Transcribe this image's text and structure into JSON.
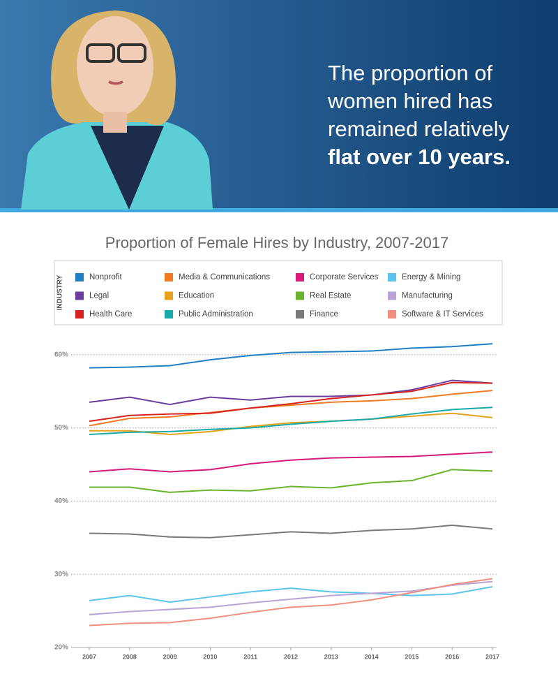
{
  "chart_data": {
    "type": "line",
    "headline": [
      "The proportion of",
      "women hired has",
      "remained relatively"
    ],
    "headline_bold": "flat over 10 years.",
    "title": "Proportion of Female Hires by Industry, 2007-2017",
    "legend_title": "INDUSTRY",
    "x": [
      2007,
      2008,
      2009,
      2010,
      2011,
      2012,
      2013,
      2014,
      2015,
      2016,
      2017
    ],
    "xlim": [
      2007,
      2017
    ],
    "xticks": [
      2007,
      2008,
      2009,
      2010,
      2011,
      2012,
      2013,
      2014,
      2015,
      2016,
      2017
    ],
    "ylim": [
      20,
      62
    ],
    "yticks": [
      {
        "value": 20,
        "label": "20%"
      },
      {
        "value": 30,
        "label": "30%"
      },
      {
        "value": 40,
        "label": "40%"
      },
      {
        "value": 50,
        "label": "50%"
      },
      {
        "value": 60,
        "label": "60%"
      }
    ],
    "grid": true,
    "series": [
      {
        "name": "Nonprofit",
        "color": "#1f7fc6",
        "values": [
          58.2,
          58.3,
          58.5,
          59.3,
          59.9,
          60.3,
          60.4,
          60.5,
          60.9,
          61.1,
          61.5
        ]
      },
      {
        "name": "Media & Communications",
        "color": "#f07b22",
        "values": [
          50.3,
          51.3,
          51.5,
          52.1,
          52.7,
          53.1,
          53.5,
          53.7,
          54.0,
          54.6,
          55.1
        ]
      },
      {
        "name": "Corporate Services",
        "color": "#d6197a",
        "values": [
          44.0,
          44.4,
          44.0,
          44.3,
          45.1,
          45.6,
          45.9,
          46.0,
          46.1,
          46.4,
          46.7
        ]
      },
      {
        "name": "Energy & Mining",
        "color": "#5bc4ec",
        "values": [
          26.4,
          27.1,
          26.2,
          26.9,
          27.6,
          28.1,
          27.6,
          27.4,
          27.1,
          27.3,
          28.3
        ]
      },
      {
        "name": "Legal",
        "color": "#6b3fa0",
        "values": [
          53.5,
          54.2,
          53.2,
          54.2,
          53.8,
          54.3,
          54.3,
          54.5,
          55.2,
          56.5,
          56.1
        ]
      },
      {
        "name": "Education",
        "color": "#e8a21a",
        "values": [
          49.6,
          49.6,
          49.1,
          49.5,
          50.2,
          50.7,
          50.9,
          51.2,
          51.6,
          52.0,
          51.4
        ]
      },
      {
        "name": "Real Estate",
        "color": "#6ab42d",
        "values": [
          41.9,
          41.9,
          41.2,
          41.5,
          41.4,
          42.0,
          41.8,
          42.5,
          42.8,
          44.3,
          44.1
        ]
      },
      {
        "name": "Manufacturing",
        "color": "#b9a3d6",
        "values": [
          24.5,
          24.9,
          25.2,
          25.5,
          26.1,
          26.6,
          27.1,
          27.4,
          27.7,
          28.5,
          29.0
        ]
      },
      {
        "name": "Health Care",
        "color": "#d7231f",
        "values": [
          50.9,
          51.7,
          51.9,
          52.0,
          52.7,
          53.3,
          54.0,
          54.5,
          55.0,
          56.2,
          56.1
        ]
      },
      {
        "name": "Public Administration",
        "color": "#17a9a9",
        "values": [
          49.1,
          49.4,
          49.5,
          49.8,
          50.0,
          50.5,
          50.9,
          51.2,
          51.9,
          52.5,
          52.8
        ]
      },
      {
        "name": "Finance",
        "color": "#7a7a7a",
        "values": [
          35.6,
          35.5,
          35.1,
          35.0,
          35.4,
          35.8,
          35.6,
          36.0,
          36.2,
          36.7,
          36.2
        ]
      },
      {
        "name": "Software & IT Services",
        "color": "#f08f80",
        "values": [
          23.0,
          23.3,
          23.4,
          24.0,
          24.8,
          25.5,
          25.8,
          26.5,
          27.5,
          28.6,
          29.4
        ]
      }
    ]
  }
}
